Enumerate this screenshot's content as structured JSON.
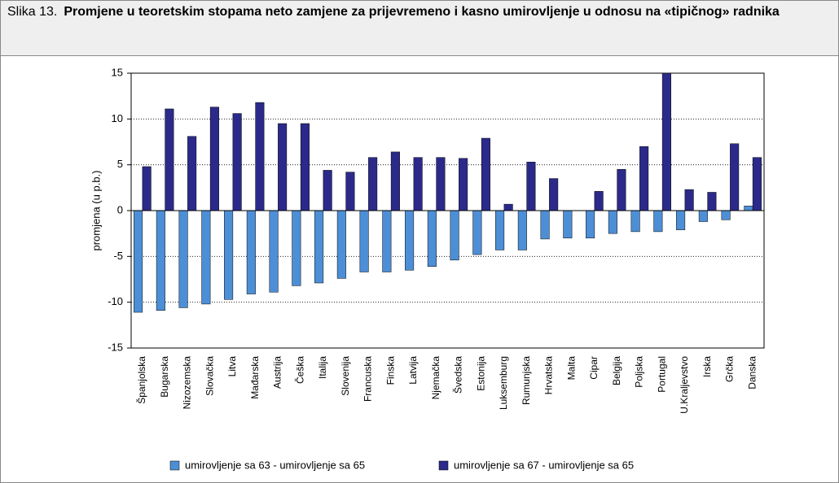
{
  "chart_data": {
    "type": "bar",
    "figure_label": "Slika 13.",
    "title": "Promjene u teoretskim stopama neto zamjene za prijevremeno i kasno umirovljenje u odnosu na «tipičnog» radnika",
    "y_label": "promjena (u p.b.)",
    "categories": [
      "Španjolska",
      "Bugarska",
      "Nizozemska",
      "Slovačka",
      "Litva",
      "Mađarska",
      "Austrija",
      "Češka",
      "Italija",
      "Slovenija",
      "Francuska",
      "Finska",
      "Latvija",
      "Njemačka",
      "Švedska",
      "Estonija",
      "Luksemburg",
      "Rumunjska",
      "Hrvatska",
      "Malta",
      "Cipar",
      "Belgija",
      "Poljska",
      "Portugal",
      "U.Kraljevstvo",
      "Irska",
      "Grčka",
      "Danska"
    ],
    "series": [
      {
        "name": "umirovljenje sa 63 - umirovljenje sa 65",
        "color": "#4d8fd6",
        "values": [
          -11.1,
          -10.9,
          -10.6,
          -10.2,
          -9.7,
          -9.1,
          -8.9,
          -8.2,
          -7.9,
          -7.4,
          -6.7,
          -6.7,
          -6.5,
          -6.1,
          -5.4,
          -4.8,
          -4.3,
          -4.3,
          -3.1,
          -3.0,
          -3.0,
          -2.5,
          -2.3,
          -2.3,
          -2.1,
          -1.2,
          -1.0,
          0.5
        ]
      },
      {
        "name": "umirovljenje sa 67 - umirovljenje sa 65",
        "color": "#2b2a8a",
        "values": [
          4.8,
          11.1,
          8.1,
          11.3,
          10.6,
          11.8,
          9.5,
          9.5,
          4.4,
          4.2,
          5.8,
          6.4,
          5.8,
          5.8,
          5.7,
          7.9,
          0.7,
          5.3,
          3.5,
          0,
          2.1,
          4.5,
          7.0,
          15.0,
          2.3,
          2.0,
          7.3,
          5.8
        ]
      }
    ],
    "ylim": [
      -15,
      15
    ],
    "yticks": [
      -15,
      -10,
      -5,
      0,
      5,
      10,
      15
    ],
    "grid": true
  }
}
